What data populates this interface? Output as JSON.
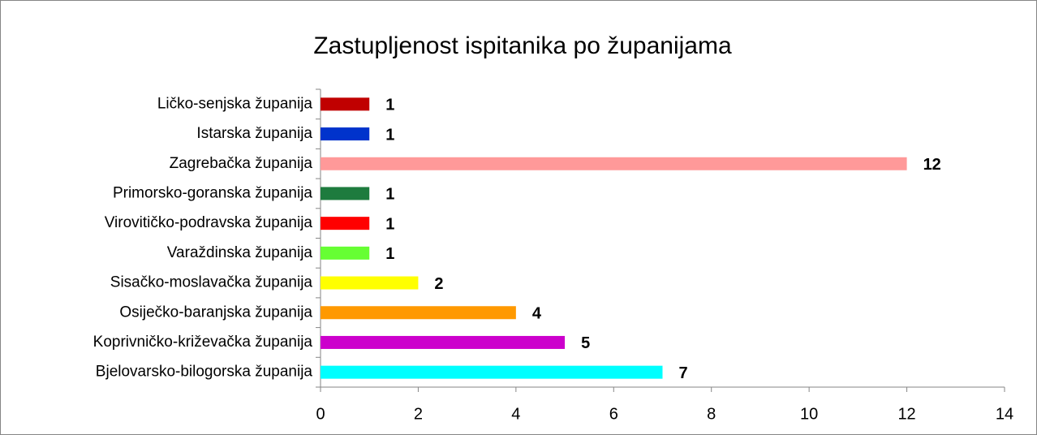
{
  "chart_data": {
    "type": "bar",
    "orientation": "horizontal",
    "title": "Zastupljenost ispitanika po županijama",
    "categories": [
      "Ličko-senjska županija",
      "Istarska županija",
      "Zagrebačka županija",
      "Primorsko-goranska županija",
      "Virovitičko-podravska županija",
      "Varaždinska županija",
      "Sisačko-moslavačka županija",
      "Osiječko-baranjska županija",
      "Koprivničko-križevačka županija",
      "Bjelovarsko-bilogorska županija"
    ],
    "values": [
      1,
      1,
      12,
      1,
      1,
      1,
      2,
      4,
      5,
      7
    ],
    "colors": [
      "#c00000",
      "#0033cc",
      "#ff9999",
      "#1e7b3e",
      "#ff0000",
      "#66ff33",
      "#ffff00",
      "#ff9900",
      "#cc00cc",
      "#00ffff"
    ],
    "xlim": [
      0,
      14
    ],
    "xticks": [
      0,
      2,
      4,
      6,
      8,
      10,
      12,
      14
    ],
    "grid": false
  }
}
